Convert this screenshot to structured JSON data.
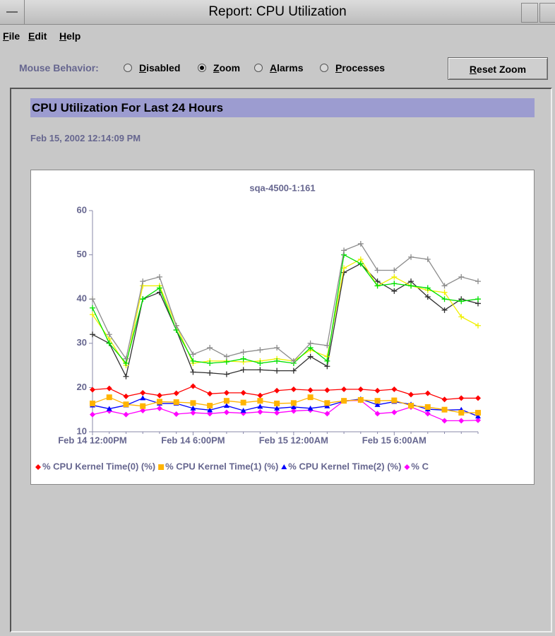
{
  "window": {
    "title": "Report: CPU Utilization"
  },
  "menu": [
    "File",
    "Edit",
    "Help"
  ],
  "toolbar": {
    "label": "Mouse Behavior:",
    "options": [
      "Disabled",
      "Zoom",
      "Alarms",
      "Processes"
    ],
    "selected": 1,
    "button": "Reset Zoom"
  },
  "report": {
    "title": "CPU Utilization For Last 24 Hours",
    "timestamp": "Feb 15, 2002 12:14:09 PM"
  },
  "chart_data": {
    "type": "line",
    "title": "sqa-4500-1:161",
    "categories": [
      "Feb 14 12:00PM",
      null,
      null,
      null,
      null,
      null,
      "Feb 14 6:00PM",
      null,
      null,
      null,
      null,
      null,
      "Feb 15 12:00AM",
      null,
      null,
      null,
      null,
      null,
      "Feb 15 6:00AM",
      null,
      null,
      null,
      null,
      null
    ],
    "ylim": [
      10,
      60
    ],
    "yticks": [
      10,
      20,
      30,
      40,
      50,
      60
    ],
    "series": [
      {
        "name": "% CPU Kernel Time(0) (%)",
        "color": "#ff0000",
        "marker": "diamond",
        "values": [
          19.5,
          19.8,
          18,
          18.8,
          18.2,
          18.7,
          20.3,
          18.6,
          18.8,
          18.8,
          18.2,
          19.3,
          19.6,
          19.4,
          19.4,
          19.6,
          19.6,
          19.3,
          19.6,
          18.4,
          18.7,
          17.3,
          17.6,
          17.6
        ]
      },
      {
        "name": "% CPU Kernel Time(1) (%)",
        "color": "#ffb400",
        "marker": "square",
        "values": [
          16.4,
          17.8,
          16.2,
          15.8,
          16.8,
          16.7,
          16.5,
          15.9,
          17,
          16.6,
          17,
          16.4,
          16.5,
          17.8,
          16.5,
          17,
          17.2,
          17,
          17.1,
          15.9,
          15.6,
          15,
          14.3,
          14.3
        ]
      },
      {
        "name": "% CPU Kernel Time(2) (%)",
        "color": "#0000ff",
        "marker": "triangle",
        "values": [
          16,
          15.2,
          16,
          17.6,
          16.4,
          16.4,
          15.3,
          14.9,
          15.9,
          14.8,
          15.7,
          15.3,
          15.6,
          15.3,
          15.8,
          16.9,
          17.4,
          16.1,
          16.8,
          16.2,
          15.1,
          14.9,
          15,
          13.5
        ]
      },
      {
        "name": "% C",
        "color": "#ff00ff",
        "marker": "diamond",
        "values": [
          13.9,
          14.7,
          13.9,
          14.8,
          15.3,
          14,
          14.3,
          14.1,
          14.4,
          14.2,
          14.5,
          14.3,
          14.7,
          14.9,
          14.1,
          17,
          17.1,
          14.1,
          14.4,
          15.6,
          14.1,
          12.5,
          12.5,
          12.6
        ]
      },
      {
        "color": "#8c8c8c",
        "marker": "plus",
        "values": [
          40,
          32,
          26.5,
          44,
          45,
          34,
          27.5,
          29,
          27,
          28,
          28.5,
          29,
          26,
          30,
          29.5,
          51,
          52.5,
          46.5,
          46.5,
          49.5,
          49,
          43,
          45,
          44
        ]
      },
      {
        "color": "#00e000",
        "marker": "plus",
        "values": [
          38,
          30,
          25.5,
          40,
          42.5,
          33,
          26,
          25.5,
          25.8,
          26.5,
          25.5,
          26,
          25.5,
          29,
          26,
          50,
          48,
          43,
          43.5,
          43,
          42.5,
          40,
          39.5,
          40
        ]
      },
      {
        "color": "#f0f000",
        "marker": "plus",
        "values": [
          36.5,
          31,
          25,
          43,
          43,
          34,
          25.5,
          26,
          26,
          25.8,
          26,
          26.5,
          26,
          28.5,
          27,
          47,
          49,
          43,
          45,
          43,
          42,
          41.5,
          36,
          34
        ]
      },
      {
        "color": "#303030",
        "marker": "plus",
        "values": [
          32,
          30,
          22.5,
          40,
          41.5,
          33,
          23.5,
          23.3,
          23,
          24,
          24,
          23.8,
          23.8,
          27,
          24.8,
          46,
          48,
          44,
          41.8,
          44,
          40.5,
          37.5,
          40,
          39
        ]
      }
    ]
  }
}
